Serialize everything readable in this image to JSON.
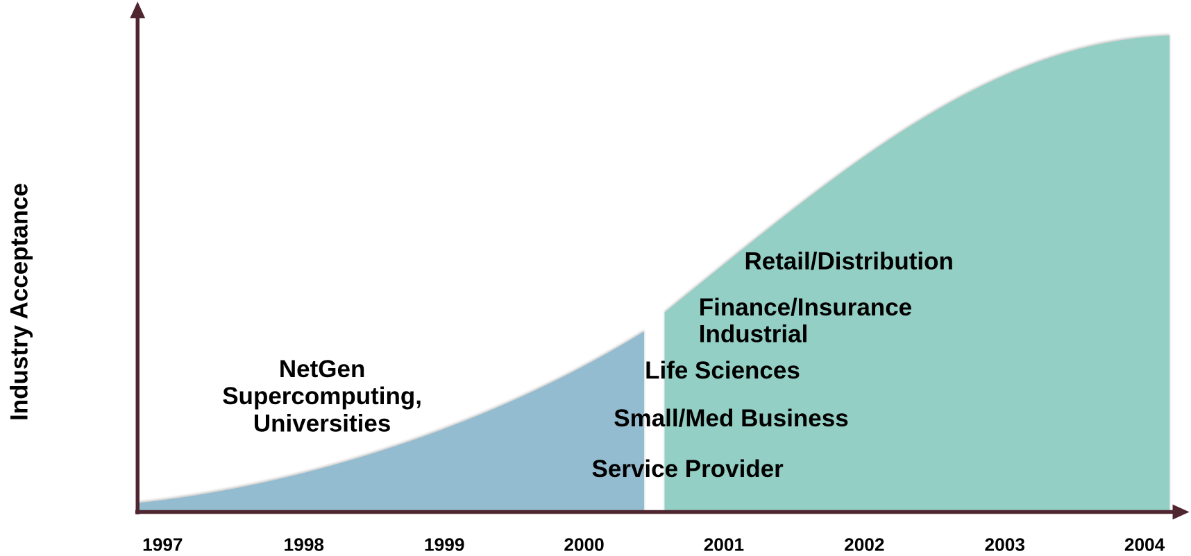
{
  "y_axis_label": "Industry Acceptance",
  "x_labels": [
    "1997",
    "1998",
    "1999",
    "2000",
    "2001",
    "2002",
    "2003",
    "2004"
  ],
  "regions": [
    {
      "labels": [
        "NetGen",
        "Supercomputing,",
        "Universities"
      ]
    },
    {
      "labels": [
        "Retail/Distribution",
        "Finance/Insurance",
        "Industrial",
        "Life Sciences",
        "Small/Med Business",
        "Service Provider"
      ]
    }
  ]
}
